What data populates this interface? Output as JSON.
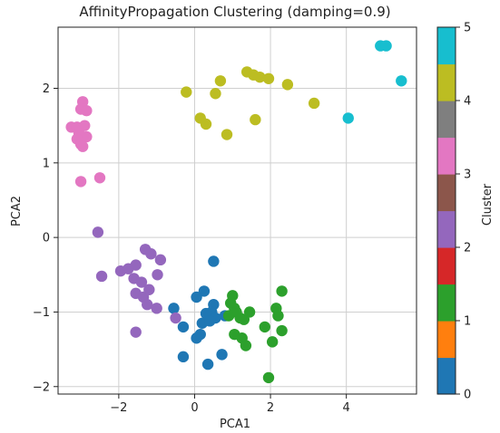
{
  "chart_data": {
    "type": "scatter",
    "title": "AffinityPropagation Clustering (damping=0.9)",
    "xlabel": "PCA1",
    "ylabel": "PCA2",
    "xlim": [
      -3.6,
      5.85
    ],
    "ylim": [
      -2.1,
      2.82
    ],
    "xticks": [
      "−2",
      "0",
      "2",
      "4"
    ],
    "xtick_values": [
      -2,
      0,
      2,
      4
    ],
    "yticks": [
      "−2",
      "−1",
      "0",
      "1",
      "2"
    ],
    "ytick_values": [
      -2,
      -1,
      0,
      1,
      2
    ],
    "grid": true,
    "colorbar": {
      "label": "Cluster",
      "range": [
        0,
        5
      ],
      "ticks": [
        "0",
        "1",
        "2",
        "3",
        "4",
        "5"
      ],
      "tick_values": [
        0,
        1,
        2,
        3,
        4,
        5
      ],
      "colormap": "tab10",
      "colors": [
        "#1f77b4",
        "#ff7f0e",
        "#2ca02c",
        "#d62728",
        "#9467bd",
        "#8c564b",
        "#e377c2",
        "#7f7f7f",
        "#bcbd22",
        "#17becf"
      ]
    },
    "series": [
      {
        "cluster": 0,
        "color": "#1f77b4",
        "points": [
          [
            0.5,
            -0.32
          ],
          [
            0.5,
            -0.9
          ],
          [
            0.25,
            -0.72
          ],
          [
            0.05,
            -0.8
          ],
          [
            -0.55,
            -0.95
          ],
          [
            0.45,
            -1.0
          ],
          [
            0.3,
            -1.02
          ],
          [
            0.55,
            -1.08
          ],
          [
            0.2,
            -1.15
          ],
          [
            0.4,
            -1.12
          ],
          [
            -0.3,
            -1.2
          ],
          [
            0.15,
            -1.3
          ],
          [
            0.05,
            -1.35
          ],
          [
            0.8,
            -1.05
          ],
          [
            0.72,
            -1.57
          ],
          [
            -0.3,
            -1.6
          ],
          [
            0.35,
            -1.7
          ]
        ]
      },
      {
        "cluster": 2,
        "color": "#2ca02c",
        "points": [
          [
            1.0,
            -0.78
          ],
          [
            0.95,
            -0.88
          ],
          [
            1.05,
            -0.95
          ],
          [
            1.1,
            -1.0
          ],
          [
            0.9,
            -1.05
          ],
          [
            1.2,
            -1.08
          ],
          [
            1.45,
            -1.0
          ],
          [
            1.3,
            -1.1
          ],
          [
            2.3,
            -0.72
          ],
          [
            2.15,
            -0.95
          ],
          [
            2.2,
            -1.05
          ],
          [
            1.85,
            -1.2
          ],
          [
            2.3,
            -1.25
          ],
          [
            1.05,
            -1.3
          ],
          [
            1.25,
            -1.35
          ],
          [
            1.35,
            -1.45
          ],
          [
            2.05,
            -1.4
          ],
          [
            1.95,
            -1.88
          ]
        ]
      },
      {
        "cluster": 4,
        "color": "#9467bd",
        "points": [
          [
            -2.55,
            0.07
          ],
          [
            -2.45,
            -0.52
          ],
          [
            -1.55,
            -0.37
          ],
          [
            -1.3,
            -0.16
          ],
          [
            -1.15,
            -0.22
          ],
          [
            -0.9,
            -0.3
          ],
          [
            -0.98,
            -0.5
          ],
          [
            -1.95,
            -0.45
          ],
          [
            -1.75,
            -0.42
          ],
          [
            -1.6,
            -0.55
          ],
          [
            -1.4,
            -0.6
          ],
          [
            -1.55,
            -0.75
          ],
          [
            -1.35,
            -0.8
          ],
          [
            -1.2,
            -0.7
          ],
          [
            -1.25,
            -0.9
          ],
          [
            -1.0,
            -0.95
          ],
          [
            -0.5,
            -1.08
          ],
          [
            -1.55,
            -1.27
          ]
        ]
      },
      {
        "cluster": 6,
        "color": "#e377c2",
        "points": [
          [
            -2.95,
            1.82
          ],
          [
            -3.0,
            1.72
          ],
          [
            -2.85,
            1.7
          ],
          [
            -3.25,
            1.48
          ],
          [
            -3.1,
            1.48
          ],
          [
            -2.9,
            1.5
          ],
          [
            -3.05,
            1.4
          ],
          [
            -2.85,
            1.35
          ],
          [
            -3.1,
            1.32
          ],
          [
            -3.0,
            1.25
          ],
          [
            -2.95,
            1.22
          ],
          [
            -2.5,
            0.8
          ],
          [
            -3.0,
            0.75
          ]
        ]
      },
      {
        "cluster": 8,
        "color": "#bcbd22",
        "points": [
          [
            -0.22,
            1.95
          ],
          [
            0.55,
            1.93
          ],
          [
            0.68,
            2.1
          ],
          [
            1.38,
            2.22
          ],
          [
            1.55,
            2.18
          ],
          [
            1.72,
            2.15
          ],
          [
            1.95,
            2.13
          ],
          [
            2.45,
            2.05
          ],
          [
            3.15,
            1.8
          ],
          [
            0.15,
            1.6
          ],
          [
            0.3,
            1.52
          ],
          [
            1.6,
            1.58
          ],
          [
            0.85,
            1.38
          ]
        ]
      },
      {
        "cluster": 9,
        "color": "#17becf",
        "points": [
          [
            4.9,
            2.57
          ],
          [
            5.05,
            2.57
          ],
          [
            5.45,
            2.1
          ],
          [
            4.05,
            1.6
          ]
        ]
      }
    ]
  }
}
